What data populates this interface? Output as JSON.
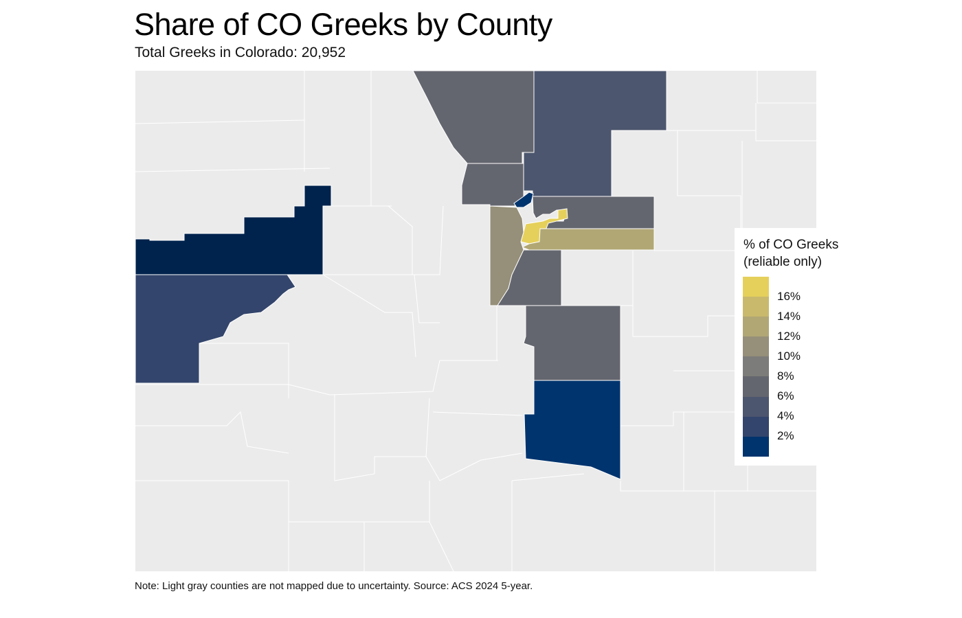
{
  "title": "Share of CO Greeks by County",
  "subtitle": "Total Greeks in Colorado: 20,952",
  "caption": "Note: Light gray counties are not mapped due to uncertainty. Source: ACS 2024 5-year.",
  "legend": {
    "title_line1": "% of CO Greeks",
    "title_line2": "(reliable only)",
    "labels": [
      "16%",
      "14%",
      "12%",
      "10%",
      "8%",
      "6%",
      "4%",
      "2%"
    ],
    "colors": [
      "#e5d05b",
      "#c9b96c",
      "#b1a775",
      "#968f79",
      "#7c7c7a",
      "#64666f",
      "#4c566e",
      "#33456c",
      "#00346e"
    ]
  },
  "colors": {
    "unmapped": "#ebebeb",
    "border": "#ffffff"
  }
}
